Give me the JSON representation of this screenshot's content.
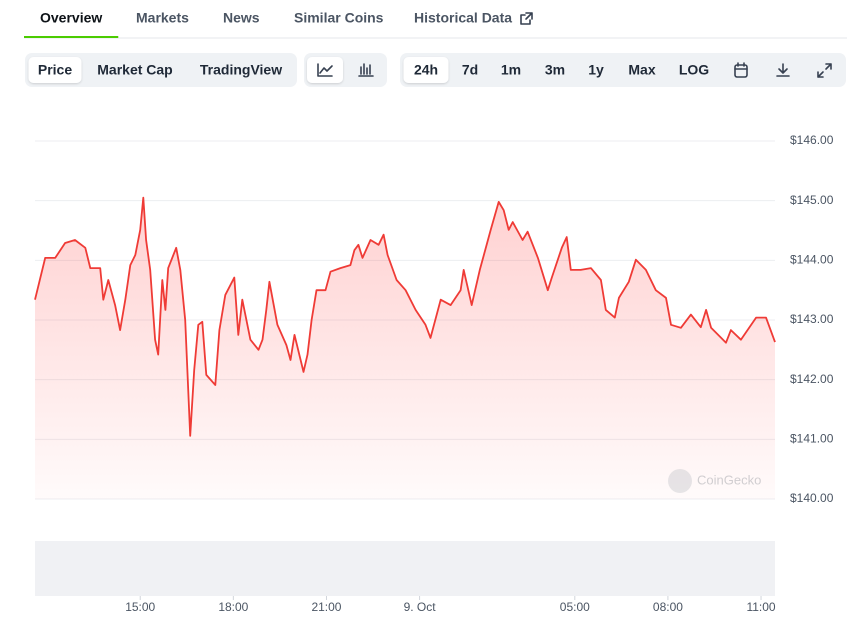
{
  "tabs": [
    {
      "label": "Overview",
      "active": true
    },
    {
      "label": "Markets",
      "active": false
    },
    {
      "label": "News",
      "active": false
    },
    {
      "label": "Similar Coins",
      "active": false
    },
    {
      "label": "Historical Data",
      "active": false
    }
  ],
  "chart_tabs": [
    {
      "label": "Price",
      "active": true
    },
    {
      "label": "Market Cap",
      "active": false
    },
    {
      "label": "TradingView",
      "active": false
    }
  ],
  "ranges": [
    {
      "label": "24h",
      "active": true
    },
    {
      "label": "7d",
      "active": false
    },
    {
      "label": "1m",
      "active": false
    },
    {
      "label": "3m",
      "active": false
    },
    {
      "label": "1y",
      "active": false
    },
    {
      "label": "Max",
      "active": false
    },
    {
      "label": "LOG",
      "active": false
    }
  ],
  "chart_data": {
    "type": "line",
    "color": "#ef3b36",
    "grid": true,
    "watermark": "CoinGecko",
    "x": [
      11.61,
      11.94,
      12.26,
      12.58,
      12.9,
      13.23,
      13.39,
      13.71,
      13.81,
      13.97,
      14.19,
      14.35,
      14.52,
      14.68,
      14.84,
      15.0,
      15.1,
      15.19,
      15.32,
      15.48,
      15.58,
      15.71,
      15.81,
      15.9,
      16.16,
      16.29,
      16.45,
      16.61,
      16.74,
      16.87,
      17.0,
      17.13,
      17.42,
      17.55,
      17.74,
      18.03,
      18.16,
      18.29,
      18.55,
      18.81,
      18.94,
      19.06,
      19.16,
      19.42,
      19.71,
      19.84,
      19.97,
      20.26,
      20.39,
      20.52,
      20.68,
      20.97,
      21.13,
      21.45,
      21.77,
      21.9,
      22.03,
      22.16,
      22.42,
      22.68,
      22.84,
      22.97,
      23.26,
      23.55,
      23.87,
      24.19,
      24.35,
      24.68,
      25.0,
      25.32,
      25.42,
      25.68,
      25.94,
      26.29,
      26.55,
      26.71,
      26.87,
      27.0,
      27.32,
      27.48,
      27.81,
      28.13,
      28.26,
      28.58,
      28.74,
      28.87,
      29.19,
      29.52,
      29.84,
      30.0,
      30.29,
      30.42,
      30.74,
      30.97,
      31.29,
      31.61,
      31.94,
      32.1,
      32.42,
      32.74,
      33.06,
      33.23,
      33.39,
      33.87,
      34.03,
      34.35,
      34.84,
      35.16,
      35.45
    ],
    "values": [
      143.34,
      144.04,
      144.04,
      144.29,
      144.34,
      144.21,
      143.87,
      143.87,
      143.34,
      143.67,
      143.25,
      142.83,
      143.34,
      143.92,
      144.09,
      144.51,
      145.05,
      144.34,
      143.84,
      142.67,
      142.42,
      143.67,
      143.17,
      143.87,
      144.21,
      143.84,
      143.0,
      141.06,
      142.16,
      142.92,
      142.97,
      142.08,
      141.91,
      142.83,
      143.42,
      143.71,
      142.75,
      143.34,
      142.67,
      142.5,
      142.67,
      143.17,
      143.64,
      142.92,
      142.58,
      142.33,
      142.75,
      142.13,
      142.42,
      143.0,
      143.5,
      143.5,
      143.81,
      143.87,
      143.92,
      144.17,
      144.26,
      144.04,
      144.34,
      144.26,
      144.43,
      144.09,
      143.67,
      143.5,
      143.17,
      142.92,
      142.7,
      143.34,
      143.25,
      143.5,
      143.84,
      143.25,
      143.84,
      144.51,
      144.98,
      144.84,
      144.51,
      144.64,
      144.34,
      144.48,
      144.04,
      143.5,
      143.71,
      144.21,
      144.39,
      143.84,
      143.84,
      143.87,
      143.67,
      143.17,
      143.04,
      143.37,
      143.64,
      144.01,
      143.84,
      143.5,
      143.37,
      142.92,
      142.87,
      143.09,
      142.88,
      143.17,
      142.87,
      142.62,
      142.83,
      142.67,
      143.04,
      143.04,
      142.63
    ],
    "xlim": [
      11.61,
      35.45
    ],
    "ylim": [
      140,
      146
    ],
    "xticks": [
      {
        "value": 15,
        "label": "15:00"
      },
      {
        "value": 18,
        "label": "18:00"
      },
      {
        "value": 21,
        "label": "21:00"
      },
      {
        "value": 24,
        "label": "9. Oct"
      },
      {
        "value": 29,
        "label": "05:00"
      },
      {
        "value": 32,
        "label": "08:00"
      },
      {
        "value": 35,
        "label": "11:00"
      }
    ],
    "yticks": [
      {
        "value": 140,
        "label": "$140.00"
      },
      {
        "value": 141,
        "label": "$141.00"
      },
      {
        "value": 142,
        "label": "$142.00"
      },
      {
        "value": 143,
        "label": "$143.00"
      },
      {
        "value": 144,
        "label": "$144.00"
      },
      {
        "value": 145,
        "label": "$145.00"
      },
      {
        "value": 146,
        "label": "$146.00"
      }
    ]
  }
}
